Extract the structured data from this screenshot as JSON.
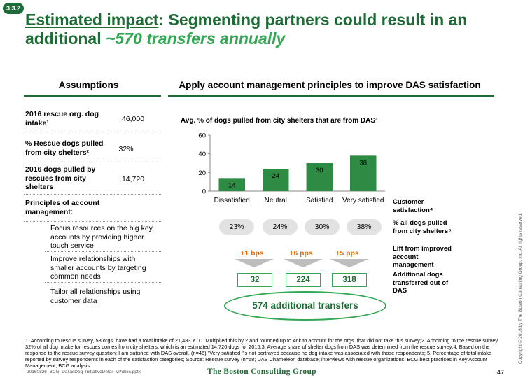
{
  "badge": "3.3.2",
  "title": {
    "part1": "Estimated impact",
    "part2": ": Segmenting partners could result in an additional ",
    "highlight": "~570 transfers annually"
  },
  "assumptions": {
    "heading": "Assumptions",
    "rows": [
      {
        "label": "2016 rescue org. dog intake¹",
        "value": "46,000"
      },
      {
        "label": "% Rescue dogs pulled from city shelters²",
        "value": "32%"
      },
      {
        "label": "2016 dogs pulled by rescues from city shelters",
        "value": "14,720"
      }
    ],
    "principles_label": "Principles of account management:",
    "principles": [
      "Focus resources on the big key, accounts by providing higher touch service",
      "Improve relationships with smaller accounts by targeting common needs",
      "Tailor all relationships using customer data"
    ]
  },
  "right": {
    "heading": "Apply account management principles to improve DAS satisfaction",
    "pct_pulled": [
      "23%",
      "24%",
      "30%",
      "38%"
    ],
    "lift": [
      "+1 bps",
      "+6 pps",
      "+5 pps"
    ],
    "additional": [
      "32",
      "224",
      "318"
    ],
    "total": "574 additional transfers",
    "row_labels": {
      "satisfaction": "Customer satisfaction⁴",
      "pct": "% all dogs pulled from city shelters⁵",
      "lift": "Lift from improved account management",
      "additional": "Additional dogs transferred out of DAS"
    }
  },
  "chart_data": {
    "type": "bar",
    "title": "Avg. % of dogs pulled from city shelters that are from DAS³",
    "categories": [
      "Dissatisfied",
      "Neutral",
      "Satisfied",
      "Very satisfied"
    ],
    "values": [
      14,
      24,
      30,
      38
    ],
    "ylim": [
      0,
      60
    ],
    "yticks": [
      0,
      20,
      40,
      60
    ],
    "bar_color": "#2e8b44",
    "grid": false
  },
  "footnote": "1. According to rescue survey, 58 orgs. have had a total intake of 21,483 YTD. Multiplied this by 2 and rounded up to 46k to account for the orgs. that did not take this survey;2. According to the rescue survey, 32% of all dog intake for rescues comes from city shelters, which is an estimated 14,720 dogs for 2016;3. Average share of shelter dogs from DAS was determined from the rescue survey;4. Based on the response to the rescue survey question: I am satisfied with DAS overall. (n=46) \"Very satisfied \"is not portrayed because no dog intake was associated with those respondents; 5. Percentage of total intake reported by survey respondents in each of the satisfaction categories; Source: Rescue survey (n=58; DAS Chameleon database; interviews with rescue organizations; BCG best practices in Key Account Management; BCG analysis",
  "file_name": "20160826_BCG_DallasDog_InitiativeDetail_vPublic.pptx",
  "brand": "The Boston Consulting Group",
  "page_number": "47",
  "copyright": "Copyright © 2016 by The Boston Consulting Group, Inc. All rights reserved.",
  "colors": {
    "primary_green": "#1d6b35",
    "accent_green": "#32a852",
    "orange": "#e36c0a"
  }
}
